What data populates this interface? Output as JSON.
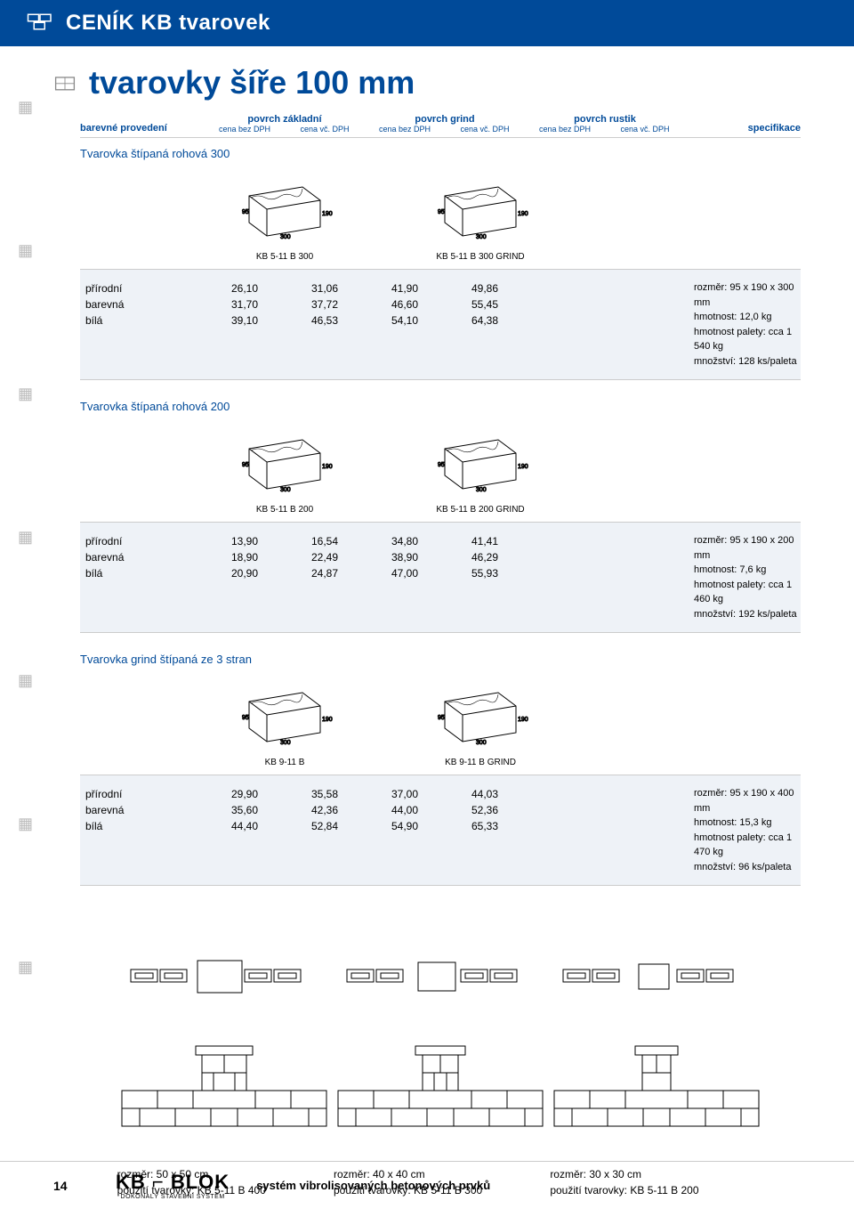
{
  "header": {
    "title": "CENÍK KB tvarovek",
    "subtitle": "tvarovky šíře 100 mm"
  },
  "table_header": {
    "col1": "barevné provedení",
    "group1": "povrch základní",
    "group2": "povrch grind",
    "group3": "povrch rustik",
    "sub1": "cena bez DPH",
    "sub2": "cena vč. DPH",
    "spec": "specifikace"
  },
  "sections": [
    {
      "title": "Tvarovka štípaná rohová 300",
      "label_left": "KB 5-11 B 300",
      "label_right": "KB 5-11 B 300 GRIND",
      "rows": [
        "přírodní",
        "barevná",
        "bílá"
      ],
      "c1": [
        "26,10",
        "31,70",
        "39,10"
      ],
      "c2": [
        "31,06",
        "37,72",
        "46,53"
      ],
      "c3": [
        "41,90",
        "46,60",
        "54,10"
      ],
      "c4": [
        "49,86",
        "55,45",
        "64,38"
      ],
      "spec": [
        "rozměr: 95 x 190 x 300 mm",
        "hmotnost: 12,0 kg",
        "hmotnost palety: cca 1 540 kg",
        "množství: 128 ks/paleta"
      ]
    },
    {
      "title": "Tvarovka štípaná rohová 200",
      "label_left": "KB 5-11 B 200",
      "label_right": "KB 5-11 B 200 GRIND",
      "rows": [
        "přírodní",
        "barevná",
        "bílá"
      ],
      "c1": [
        "13,90",
        "18,90",
        "20,90"
      ],
      "c2": [
        "16,54",
        "22,49",
        "24,87"
      ],
      "c3": [
        "34,80",
        "38,90",
        "47,00"
      ],
      "c4": [
        "41,41",
        "46,29",
        "55,93"
      ],
      "spec": [
        "rozměr: 95 x 190 x 200 mm",
        "hmotnost: 7,6 kg",
        "hmotnost palety: cca 1 460 kg",
        "množství: 192 ks/paleta"
      ]
    },
    {
      "title": "Tvarovka grind štípaná ze 3 stran",
      "label_left": "KB 9-11 B",
      "label_right": "KB 9-11 B GRIND",
      "rows": [
        "přírodní",
        "barevná",
        "bílá"
      ],
      "c1": [
        "29,90",
        "35,60",
        "44,40"
      ],
      "c2": [
        "35,58",
        "42,36",
        "52,84"
      ],
      "c3": [
        "37,00",
        "44,00",
        "54,90"
      ],
      "c4": [
        "44,03",
        "52,36",
        "65,33"
      ],
      "spec": [
        "rozměr: 95 x 190 x 400 mm",
        "hmotnost: 15,3 kg",
        "hmotnost palety: cca 1 470 kg",
        "množství: 96 ks/paleta"
      ]
    }
  ],
  "pillars": [
    {
      "size": "rozměr: 50 x 50 cm",
      "use": "použití tvarovky: KB 5-11 B 400"
    },
    {
      "size": "rozměr: 40 x 40 cm",
      "use": "použití tvarovky: KB 5-11 B 300"
    },
    {
      "size": "rozměr: 30 x 30 cm",
      "use": "použití tvarovky: KB 5-11 B 200"
    }
  ],
  "footer": {
    "page": "14",
    "logo": "KB ⌐ BLOK",
    "logo_sub": "DOKONALÝ STAVEBNÍ SYSTÉM",
    "text": "systém vibrolisovaných betonových prvků"
  },
  "colors": {
    "primary": "#004a99",
    "row_bg": "#eef2f7",
    "border": "#cccccc"
  }
}
